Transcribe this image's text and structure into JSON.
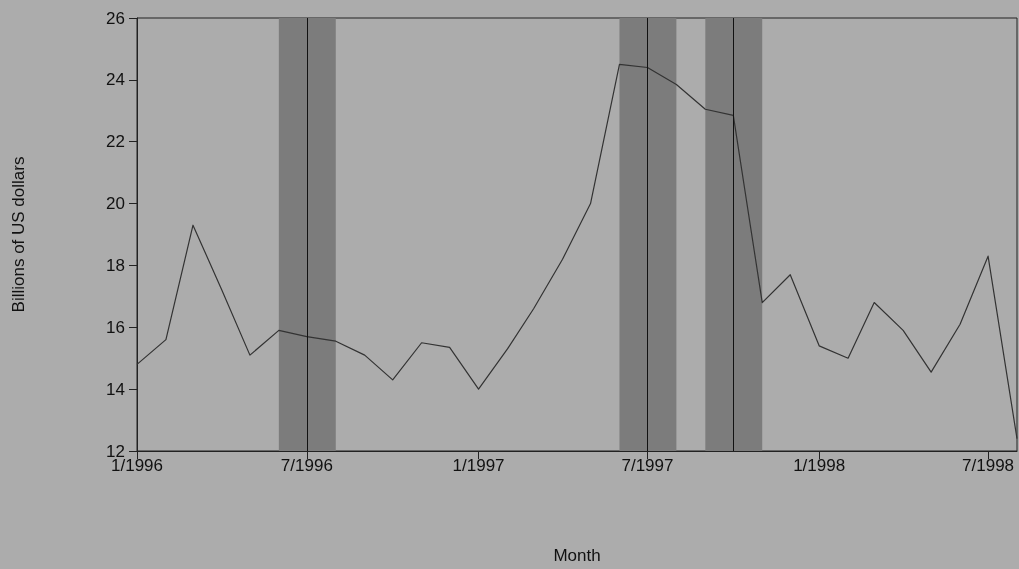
{
  "chart_data": {
    "type": "line",
    "xlabel": "Month",
    "ylabel": "Billions of US dollars",
    "x": [
      "1996-01",
      "1996-02",
      "1996-03",
      "1996-04",
      "1996-05",
      "1996-06",
      "1996-07",
      "1996-08",
      "1996-09",
      "1996-10",
      "1996-11",
      "1996-12",
      "1997-01",
      "1997-02",
      "1997-03",
      "1997-04",
      "1997-05",
      "1997-06",
      "1997-07",
      "1997-08",
      "1997-09",
      "1997-10",
      "1997-11",
      "1997-12",
      "1998-01",
      "1998-02",
      "1998-03",
      "1998-04",
      "1998-05",
      "1998-06",
      "1998-07",
      "1998-08"
    ],
    "series": [
      {
        "color": "#333333",
        "values": [
          14.8,
          15.6,
          19.3,
          17.2,
          15.1,
          15.9,
          15.7,
          15.55,
          15.1,
          14.3,
          15.5,
          15.35,
          14.0,
          15.3,
          16.6,
          18.2,
          20.0,
          24.5,
          24.4,
          23.85,
          23.05,
          22.85,
          16.8,
          17.7,
          15.4,
          15.0,
          16.8,
          15.9,
          14.55,
          16.1,
          18.3,
          12.4
        ]
      }
    ],
    "xlim": [
      "1996-01",
      "1998-08"
    ],
    "xticks": [
      {
        "value": "1996-01",
        "label": "1/1996"
      },
      {
        "value": "1996-07",
        "label": "7/1996"
      },
      {
        "value": "1997-01",
        "label": "1/1997"
      },
      {
        "value": "1997-07",
        "label": "7/1997"
      },
      {
        "value": "1998-01",
        "label": "1/1998"
      },
      {
        "value": "1998-07",
        "label": "7/1998"
      }
    ],
    "ylim": [
      12,
      26
    ],
    "yticks": [
      12,
      14,
      16,
      18,
      20,
      22,
      24,
      26
    ],
    "bands": [
      {
        "axis": "x",
        "from": "1996-06",
        "to": "1996-08",
        "color": "#7c7c7c"
      },
      {
        "axis": "x",
        "from": "1997-06",
        "to": "1997-08",
        "color": "#7c7c7c"
      },
      {
        "axis": "x",
        "from": "1997-09",
        "to": "1997-11",
        "color": "#7c7c7c"
      }
    ],
    "ref_lines": [
      {
        "axis": "x",
        "value": "1996-07",
        "color": "#111111"
      },
      {
        "axis": "x",
        "value": "1997-07",
        "color": "#111111"
      },
      {
        "axis": "x",
        "value": "1997-10",
        "color": "#111111"
      }
    ],
    "grid": false,
    "marker": "none",
    "line_style": "solid"
  }
}
